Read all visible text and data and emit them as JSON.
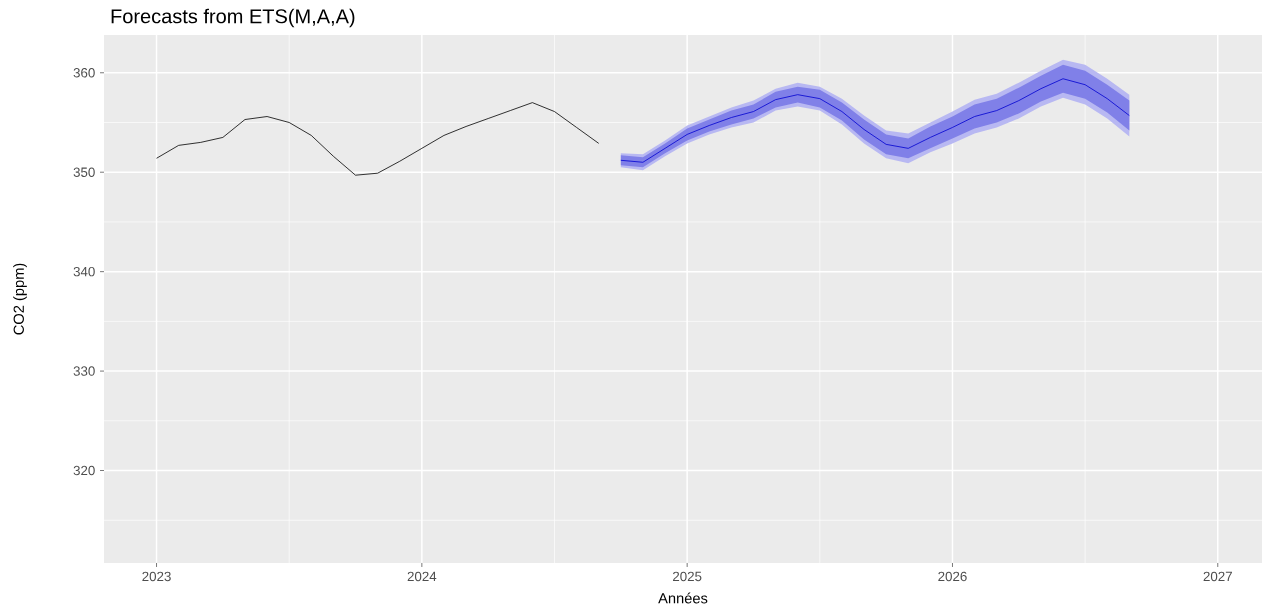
{
  "chart_data": {
    "type": "line",
    "title": "Forecasts from ETS(M,A,A)",
    "xlabel": "Années",
    "ylabel": "CO2 (ppm)",
    "xlim": [
      "2022-10-20",
      "2027-03-01"
    ],
    "xticks": [
      {
        "value": "2023",
        "label": "2023"
      },
      {
        "value": "2024",
        "label": "2024"
      },
      {
        "value": "2025",
        "label": "2025"
      },
      {
        "value": "2026",
        "label": "2026"
      },
      {
        "value": "2027",
        "label": "2027"
      }
    ],
    "ylim": [
      310.7,
      363.8
    ],
    "yticks": [
      320,
      330,
      340,
      350,
      360
    ],
    "grid": true,
    "series": [
      {
        "color": "#000000",
        "x": [
          "2023-01",
          "2023-02",
          "2023-03",
          "2023-04",
          "2023-05",
          "2023-06",
          "2023-07",
          "2023-08",
          "2023-09",
          "2023-10",
          "2023-11",
          "2023-12",
          "2024-01",
          "2024-02",
          "2024-03",
          "2024-04",
          "2024-05",
          "2024-06",
          "2024-07",
          "2024-08",
          "2024-09"
        ],
        "values": [
          351.4,
          352.7,
          353.0,
          353.5,
          355.3,
          355.6,
          355.0,
          353.7,
          351.6,
          349.7,
          349.9,
          351.1,
          352.4,
          353.7,
          354.6,
          355.4,
          356.2,
          357.0,
          356.1,
          354.5,
          352.9
        ]
      },
      {
        "color": "#0000d0",
        "x": [
          "2024-10",
          "2024-11",
          "2024-12",
          "2025-01",
          "2025-02",
          "2025-03",
          "2025-04",
          "2025-05",
          "2025-06",
          "2025-07",
          "2025-08",
          "2025-09",
          "2025-10",
          "2025-11",
          "2025-12",
          "2026-01",
          "2026-02",
          "2026-03",
          "2026-04",
          "2026-05",
          "2026-06",
          "2026-07",
          "2026-08",
          "2026-09"
        ],
        "values": [
          null,
          null,
          null,
          null,
          null,
          null,
          null,
          null,
          null,
          null,
          null,
          null,
          null,
          null,
          null,
          null,
          null,
          null,
          null,
          null,
          null,
          null,
          null,
          null
        ],
        "lower": [
          350.5,
          350.2,
          351.6,
          352.9,
          353.8,
          354.5,
          355.0,
          356.2,
          356.6,
          356.2,
          354.8,
          352.9,
          351.4,
          350.9,
          352.0,
          352.9,
          353.9,
          354.5,
          355.4,
          356.6,
          357.5,
          356.8,
          355.4,
          353.6
        ],
        "upper": [
          351.9,
          351.8,
          353.2,
          354.7,
          355.6,
          356.5,
          357.2,
          358.4,
          359.0,
          358.6,
          357.4,
          355.7,
          354.2,
          353.9,
          355.0,
          356.1,
          357.3,
          357.9,
          359.0,
          360.2,
          361.3,
          360.8,
          359.4,
          357.8
        ]
      },
      {
        "color": "#0000d0",
        "x": [
          "2024-10",
          "2024-11",
          "2024-12",
          "2025-01",
          "2025-02",
          "2025-03",
          "2025-04",
          "2025-05",
          "2025-06",
          "2025-07",
          "2025-08",
          "2025-09",
          "2025-10",
          "2025-11",
          "2025-12",
          "2026-01",
          "2026-02",
          "2026-03",
          "2026-04",
          "2026-05",
          "2026-06",
          "2026-07",
          "2026-08",
          "2026-09"
        ],
        "values": [
          351.2,
          351.0,
          352.4,
          353.8,
          354.7,
          355.5,
          356.1,
          357.3,
          357.8,
          357.4,
          356.1,
          354.3,
          352.8,
          352.4,
          353.5,
          354.5,
          355.6,
          356.2,
          357.2,
          358.4,
          359.4,
          358.8,
          357.4,
          355.7
        ],
        "lower": [
          350.7,
          350.5,
          351.9,
          353.2,
          354.1,
          354.8,
          355.4,
          356.5,
          357.0,
          356.5,
          355.2,
          353.3,
          351.8,
          351.4,
          352.4,
          353.4,
          354.4,
          355.0,
          355.9,
          357.1,
          358.0,
          357.4,
          356.0,
          354.2
        ],
        "upper": [
          351.7,
          351.5,
          352.9,
          354.4,
          355.3,
          356.2,
          356.8,
          358.1,
          358.6,
          358.3,
          357.0,
          355.3,
          353.8,
          353.4,
          354.6,
          355.6,
          356.8,
          357.4,
          358.5,
          359.7,
          360.8,
          360.2,
          358.8,
          357.2
        ]
      }
    ]
  }
}
